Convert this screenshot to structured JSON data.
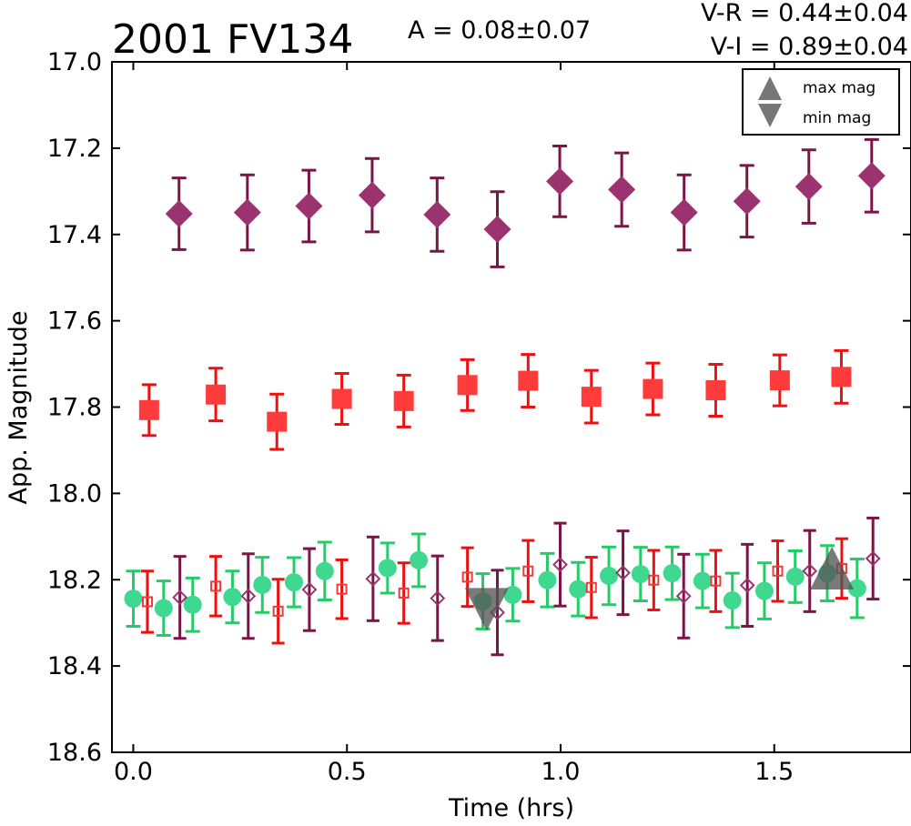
{
  "title": "2001 FV134",
  "amplitude_label": "A  = 0.08±0.07",
  "color_index_vr": "V-R = 0.44±0.04",
  "color_index_vi": "V-I  = 0.89±0.04",
  "legend": {
    "placement": "top-right",
    "max_label": "max mag",
    "min_label": "min mag",
    "max_icon": "triangle-up-icon",
    "min_icon": "triangle-down-icon"
  },
  "chart_data": {
    "type": "scatter",
    "xlabel": "Time (hrs)",
    "ylabel": "App. Magnitude",
    "xlim": [
      -0.05,
      1.82
    ],
    "ylim": [
      18.6,
      17.0
    ],
    "y_inverted": true,
    "xticks": [
      "0.0",
      "0.5",
      "1.0",
      "1.5"
    ],
    "xtick_values": [
      0.0,
      0.5,
      1.0,
      1.5
    ],
    "yticks": [
      "17.0",
      "17.2",
      "17.4",
      "17.6",
      "17.8",
      "18.0",
      "18.2",
      "18.4",
      "18.6"
    ],
    "ytick_values": [
      17.0,
      17.2,
      17.4,
      17.6,
      17.8,
      18.0,
      18.2,
      18.4,
      18.6
    ],
    "grid": false,
    "series": [
      {
        "marker": "diamond",
        "filled": true,
        "color": "#9b3370",
        "errcolor": "#7a1548",
        "x": [
          0.107,
          0.267,
          0.411,
          0.559,
          0.711,
          0.852,
          0.998,
          1.143,
          1.289,
          1.436,
          1.581,
          1.728
        ],
        "y": [
          17.352,
          17.349,
          17.334,
          17.309,
          17.354,
          17.388,
          17.277,
          17.296,
          17.349,
          17.323,
          17.289,
          17.264
        ],
        "err": [
          0.083,
          0.087,
          0.083,
          0.085,
          0.085,
          0.087,
          0.082,
          0.085,
          0.087,
          0.083,
          0.085,
          0.084
        ]
      },
      {
        "marker": "square",
        "filled": true,
        "color": "#ff3b3b",
        "errcolor": "#ee1010",
        "x": [
          0.037,
          0.193,
          0.336,
          0.488,
          0.633,
          0.782,
          0.924,
          1.072,
          1.216,
          1.363,
          1.513,
          1.657
        ],
        "y": [
          17.807,
          17.771,
          17.834,
          17.781,
          17.786,
          17.749,
          17.739,
          17.776,
          17.758,
          17.761,
          17.738,
          17.73
        ],
        "err": [
          0.059,
          0.061,
          0.064,
          0.059,
          0.06,
          0.059,
          0.061,
          0.061,
          0.06,
          0.06,
          0.059,
          0.061
        ]
      },
      {
        "marker": "circle",
        "filled": true,
        "color": "#3fd890",
        "errcolor": "#22cc66",
        "x": [
          0.0,
          0.071,
          0.139,
          0.232,
          0.302,
          0.376,
          0.448,
          0.595,
          0.668,
          0.818,
          0.888,
          0.969,
          1.041,
          1.113,
          1.187,
          1.261,
          1.332,
          1.402,
          1.477,
          1.549,
          1.624,
          1.694
        ],
        "y": [
          18.244,
          18.266,
          18.258,
          18.24,
          18.212,
          18.206,
          18.18,
          18.173,
          18.155,
          18.25,
          18.235,
          18.201,
          18.222,
          18.191,
          18.187,
          18.185,
          18.203,
          18.248,
          18.226,
          18.193,
          18.185,
          18.22
        ],
        "err": [
          0.064,
          0.063,
          0.062,
          0.06,
          0.064,
          0.057,
          0.067,
          0.058,
          0.061,
          0.064,
          0.061,
          0.062,
          0.062,
          0.067,
          0.062,
          0.061,
          0.062,
          0.063,
          0.065,
          0.06,
          0.064,
          0.068
        ]
      },
      {
        "marker": "square",
        "filled": false,
        "color": "#ee3a3a",
        "errcolor": "#ee1010",
        "x": [
          0.033,
          0.193,
          0.339,
          0.488,
          0.633,
          0.782,
          0.924,
          1.072,
          1.218,
          1.363,
          1.508,
          1.658
        ],
        "y": [
          18.251,
          18.215,
          18.273,
          18.222,
          18.231,
          18.194,
          18.18,
          18.218,
          18.201,
          18.203,
          18.18,
          18.174
        ],
        "err": [
          0.071,
          0.069,
          0.074,
          0.068,
          0.07,
          0.068,
          0.071,
          0.07,
          0.069,
          0.071,
          0.07,
          0.069
        ]
      },
      {
        "marker": "diamond",
        "filled": false,
        "color": "#9b3370",
        "errcolor": "#7a1548",
        "x": [
          0.109,
          0.269,
          0.412,
          0.561,
          0.712,
          0.852,
          0.999,
          1.146,
          1.288,
          1.437,
          1.583,
          1.731
        ],
        "y": [
          18.241,
          18.238,
          18.223,
          18.198,
          18.243,
          18.276,
          18.165,
          18.184,
          18.238,
          18.213,
          18.18,
          18.151
        ],
        "err": [
          0.095,
          0.098,
          0.095,
          0.097,
          0.098,
          0.098,
          0.096,
          0.097,
          0.097,
          0.095,
          0.094,
          0.094
        ]
      }
    ],
    "extrema": [
      {
        "kind": "min",
        "x": 0.827,
        "y": 18.253
      },
      {
        "kind": "max",
        "x": 1.635,
        "y": 18.189
      }
    ]
  }
}
